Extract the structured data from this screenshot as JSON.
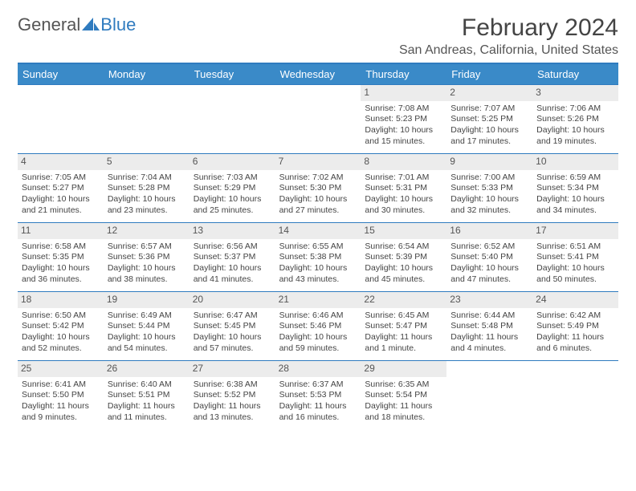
{
  "brand": {
    "word1": "General",
    "word2": "Blue"
  },
  "title": "February 2024",
  "location": "San Andreas, California, United States",
  "colors": {
    "accent": "#3a8ac8",
    "rule": "#2f7bbf",
    "daynum_bg": "#ececec",
    "text": "#444444",
    "bg": "#ffffff"
  },
  "day_names": [
    "Sunday",
    "Monday",
    "Tuesday",
    "Wednesday",
    "Thursday",
    "Friday",
    "Saturday"
  ],
  "layout": {
    "leading_blanks": 4,
    "days_in_month": 29
  },
  "days": [
    {
      "n": 1,
      "sunrise": "7:08 AM",
      "sunset": "5:23 PM",
      "daylight": "10 hours and 15 minutes."
    },
    {
      "n": 2,
      "sunrise": "7:07 AM",
      "sunset": "5:25 PM",
      "daylight": "10 hours and 17 minutes."
    },
    {
      "n": 3,
      "sunrise": "7:06 AM",
      "sunset": "5:26 PM",
      "daylight": "10 hours and 19 minutes."
    },
    {
      "n": 4,
      "sunrise": "7:05 AM",
      "sunset": "5:27 PM",
      "daylight": "10 hours and 21 minutes."
    },
    {
      "n": 5,
      "sunrise": "7:04 AM",
      "sunset": "5:28 PM",
      "daylight": "10 hours and 23 minutes."
    },
    {
      "n": 6,
      "sunrise": "7:03 AM",
      "sunset": "5:29 PM",
      "daylight": "10 hours and 25 minutes."
    },
    {
      "n": 7,
      "sunrise": "7:02 AM",
      "sunset": "5:30 PM",
      "daylight": "10 hours and 27 minutes."
    },
    {
      "n": 8,
      "sunrise": "7:01 AM",
      "sunset": "5:31 PM",
      "daylight": "10 hours and 30 minutes."
    },
    {
      "n": 9,
      "sunrise": "7:00 AM",
      "sunset": "5:33 PM",
      "daylight": "10 hours and 32 minutes."
    },
    {
      "n": 10,
      "sunrise": "6:59 AM",
      "sunset": "5:34 PM",
      "daylight": "10 hours and 34 minutes."
    },
    {
      "n": 11,
      "sunrise": "6:58 AM",
      "sunset": "5:35 PM",
      "daylight": "10 hours and 36 minutes."
    },
    {
      "n": 12,
      "sunrise": "6:57 AM",
      "sunset": "5:36 PM",
      "daylight": "10 hours and 38 minutes."
    },
    {
      "n": 13,
      "sunrise": "6:56 AM",
      "sunset": "5:37 PM",
      "daylight": "10 hours and 41 minutes."
    },
    {
      "n": 14,
      "sunrise": "6:55 AM",
      "sunset": "5:38 PM",
      "daylight": "10 hours and 43 minutes."
    },
    {
      "n": 15,
      "sunrise": "6:54 AM",
      "sunset": "5:39 PM",
      "daylight": "10 hours and 45 minutes."
    },
    {
      "n": 16,
      "sunrise": "6:52 AM",
      "sunset": "5:40 PM",
      "daylight": "10 hours and 47 minutes."
    },
    {
      "n": 17,
      "sunrise": "6:51 AM",
      "sunset": "5:41 PM",
      "daylight": "10 hours and 50 minutes."
    },
    {
      "n": 18,
      "sunrise": "6:50 AM",
      "sunset": "5:42 PM",
      "daylight": "10 hours and 52 minutes."
    },
    {
      "n": 19,
      "sunrise": "6:49 AM",
      "sunset": "5:44 PM",
      "daylight": "10 hours and 54 minutes."
    },
    {
      "n": 20,
      "sunrise": "6:47 AM",
      "sunset": "5:45 PM",
      "daylight": "10 hours and 57 minutes."
    },
    {
      "n": 21,
      "sunrise": "6:46 AM",
      "sunset": "5:46 PM",
      "daylight": "10 hours and 59 minutes."
    },
    {
      "n": 22,
      "sunrise": "6:45 AM",
      "sunset": "5:47 PM",
      "daylight": "11 hours and 1 minute."
    },
    {
      "n": 23,
      "sunrise": "6:44 AM",
      "sunset": "5:48 PM",
      "daylight": "11 hours and 4 minutes."
    },
    {
      "n": 24,
      "sunrise": "6:42 AM",
      "sunset": "5:49 PM",
      "daylight": "11 hours and 6 minutes."
    },
    {
      "n": 25,
      "sunrise": "6:41 AM",
      "sunset": "5:50 PM",
      "daylight": "11 hours and 9 minutes."
    },
    {
      "n": 26,
      "sunrise": "6:40 AM",
      "sunset": "5:51 PM",
      "daylight": "11 hours and 11 minutes."
    },
    {
      "n": 27,
      "sunrise": "6:38 AM",
      "sunset": "5:52 PM",
      "daylight": "11 hours and 13 minutes."
    },
    {
      "n": 28,
      "sunrise": "6:37 AM",
      "sunset": "5:53 PM",
      "daylight": "11 hours and 16 minutes."
    },
    {
      "n": 29,
      "sunrise": "6:35 AM",
      "sunset": "5:54 PM",
      "daylight": "11 hours and 18 minutes."
    }
  ],
  "labels": {
    "sunrise": "Sunrise:",
    "sunset": "Sunset:",
    "daylight": "Daylight:"
  }
}
